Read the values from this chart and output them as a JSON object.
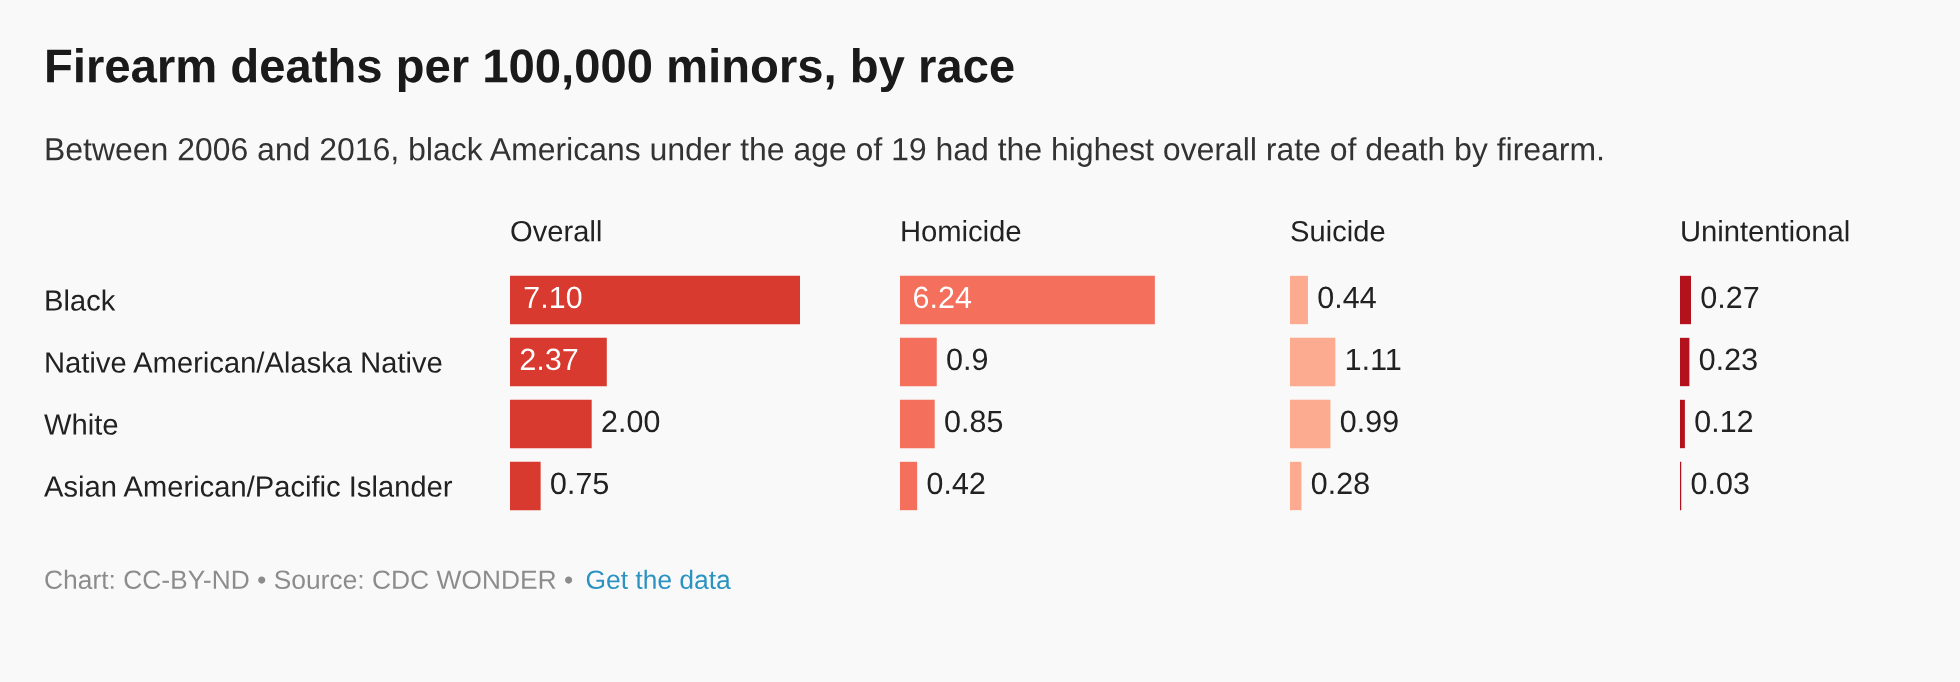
{
  "chart_data": [
    {
      "type": "other",
      "title": "Firearm deaths per 100,000 minors, by race",
      "subtitle": "Between 2006 and 2016, black Americans under the age of 19 had the highest overall rate of death by firearm.",
      "annotations": [
        "Chart: CC-BY-ND • Source: CDC WONDER • ",
        "Get the data"
      ]
    },
    {
      "type": "bar",
      "orientation": "horizontal",
      "title": "Overall",
      "categories": [
        "Black",
        "Native American/Alaska Native",
        "White",
        "Asian American/Pacific Islander"
      ],
      "values": [
        7.1,
        2.37,
        2.0,
        0.75
      ],
      "value_labels": [
        "7.10",
        "2.37",
        "2.00",
        "0.75"
      ],
      "color": "#d93a2f",
      "tick_labels": "y"
    },
    {
      "type": "bar",
      "orientation": "horizontal",
      "title": "Homicide",
      "values": [
        6.24,
        0.9,
        0.85,
        0.42
      ],
      "value_labels": [
        "6.24",
        "0.9",
        "0.85",
        "0.42"
      ],
      "color": "#f4705d",
      "tick_labels": false
    },
    {
      "type": "bar",
      "orientation": "horizontal",
      "title": "Suicide",
      "values": [
        0.44,
        1.11,
        0.99,
        0.28
      ],
      "value_labels": [
        "0.44",
        "1.11",
        "0.99",
        "0.28"
      ],
      "color": "#fcab91",
      "tick_labels": false
    },
    {
      "type": "bar",
      "orientation": "horizontal",
      "title": "Unintentional",
      "values": [
        0.27,
        0.23,
        0.12,
        0.03
      ],
      "value_labels": [
        "0.27",
        "0.23",
        "0.12",
        "0.03"
      ],
      "color": "#b3121d",
      "tick_labels": false
    }
  ]
}
